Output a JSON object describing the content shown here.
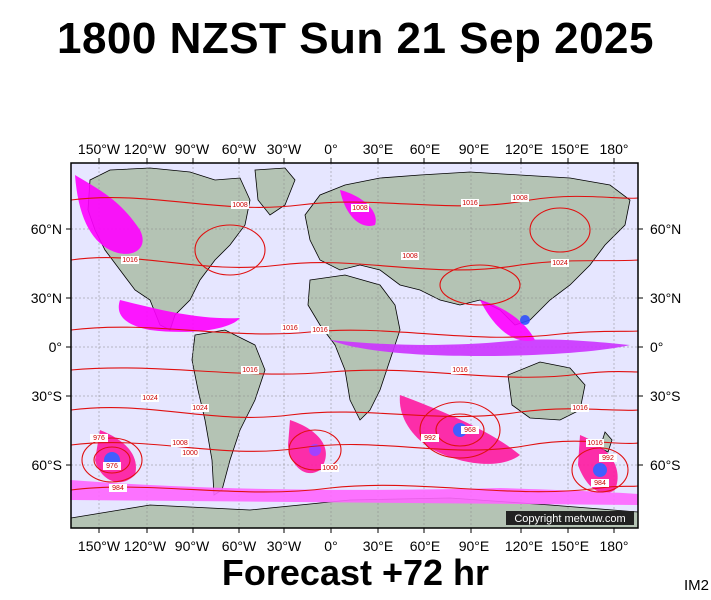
{
  "title": "1800 NZST Sun 21 Sep 2025",
  "footer": "Forecast +72 hr",
  "image_code": "IM2",
  "copyright": "Copyright metvuw.com",
  "axes": {
    "lon_labels": [
      "150°W",
      "120°W",
      "90°W",
      "60°W",
      "30°W",
      "0°",
      "30°E",
      "60°E",
      "90°E",
      "120°E",
      "150°E",
      "180°"
    ],
    "lat_labels": [
      "60°N",
      "30°N",
      "0°",
      "30°S",
      "60°S"
    ]
  },
  "isobar_labels": [
    "1016",
    "1008",
    "1016",
    "1008",
    "1016",
    "1024",
    "1016",
    "1008",
    "1016",
    "1024",
    "1016",
    "1008",
    "1000",
    "976",
    "984",
    "968",
    "992",
    "1000",
    "1016",
    "1024",
    "1008",
    "1016",
    "992",
    "984",
    "976"
  ],
  "colors": {
    "ocean": "#e6e6ff",
    "land": "#b4c3b4",
    "isobar": "#e01010",
    "rain_magenta": "#ff00ff",
    "rain_purple": "#9b30ff",
    "rain_blue": "#3050ff"
  }
}
